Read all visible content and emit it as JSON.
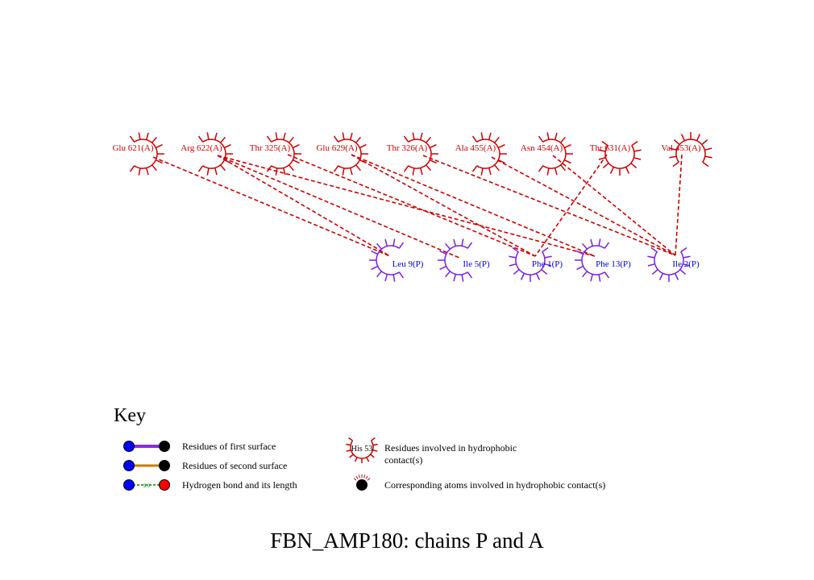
{
  "colors": {
    "chain_a": "#cc0000",
    "chain_p": "#7a1fe0",
    "label_p": "#0000cc",
    "bond": "#cc0000",
    "first_surface": "#8a2be2",
    "second_surface": "#cc7a00",
    "hbond": "#008000",
    "atom_blue": "#0000ff",
    "atom_black": "#000000",
    "atom_red": "#ff0000"
  },
  "residues_a": [
    {
      "label": "Glu 621(A)"
    },
    {
      "label": "Arg 622(A)"
    },
    {
      "label": "Thr 325(A)"
    },
    {
      "label": "Glu 629(A)"
    },
    {
      "label": "Thr 326(A)"
    },
    {
      "label": "Ala 455(A)"
    },
    {
      "label": "Asn 454(A)"
    },
    {
      "label": "Thr 631(A)"
    },
    {
      "label": "Val 453(A)"
    }
  ],
  "residues_p": [
    {
      "label": "Leu 9(P)"
    },
    {
      "label": "Ile 5(P)"
    },
    {
      "label": "Phe 1(P)"
    },
    {
      "label": "Phe 13(P)"
    },
    {
      "label": "Ile 2(P)"
    }
  ],
  "contacts": [
    {
      "a": "Glu 621(A)",
      "p": "Leu 9(P)"
    },
    {
      "a": "Arg 622(A)",
      "p": "Leu 9(P)"
    },
    {
      "a": "Arg 622(A)",
      "p": "Ile 5(P)"
    },
    {
      "a": "Arg 622(A)",
      "p": "Phe 13(P)"
    },
    {
      "a": "Thr 325(A)",
      "p": "Phe 1(P)"
    },
    {
      "a": "Glu 629(A)",
      "p": "Phe 1(P)"
    },
    {
      "a": "Glu 629(A)",
      "p": "Phe 13(P)"
    },
    {
      "a": "Thr 326(A)",
      "p": "Ile 2(P)"
    },
    {
      "a": "Ala 455(A)",
      "p": "Ile 2(P)"
    },
    {
      "a": "Asn 454(A)",
      "p": "Ile 2(P)"
    },
    {
      "a": "Thr 631(A)",
      "p": "Phe 1(P)"
    },
    {
      "a": "Val 453(A)",
      "p": "Ile 2(P)"
    }
  ],
  "key": {
    "title": "Key",
    "first_surface": "Residues of first surface",
    "second_surface": "Residues of second surface",
    "hbond": "Hydrogen bond and its length",
    "hbond_length": "3.0",
    "hydrophobic_example": "His 53",
    "hydrophobic_line1": "Residues involved in hydrophobic",
    "hydrophobic_line2": "contact(s)",
    "atoms": "Corresponding atoms involved in hydrophobic contact(s)"
  },
  "title": "FBN_AMP180: chains P and A"
}
